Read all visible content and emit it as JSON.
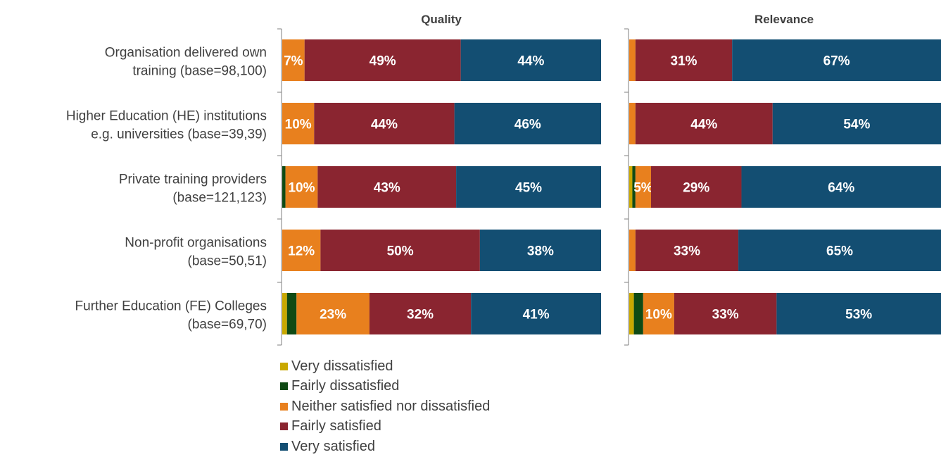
{
  "chart_data": {
    "type": "bar",
    "orientation": "horizontal",
    "stacked": "100%",
    "categories": [
      [
        "Organisation delivered own",
        "training (base=98,100)"
      ],
      [
        "Higher Education (HE) institutions",
        "e.g. universities (base=39,39)"
      ],
      [
        "Private training providers",
        "(base=121,123)"
      ],
      [
        "Non-profit organisations",
        "(base=50,51)"
      ],
      [
        "Further Education (FE) Colleges",
        "(base=69,70)"
      ]
    ],
    "series": [
      {
        "name": "Very dissatisfied",
        "color": "#C9A800"
      },
      {
        "name": "Fairly dissatisfied",
        "color": "#0F4A14"
      },
      {
        "name": "Neither satisfied nor dissatisfied",
        "color": "#E8801E"
      },
      {
        "name": "Fairly satisfied",
        "color": "#8A2530"
      },
      {
        "name": "Very satisfied",
        "color": "#134E72"
      }
    ],
    "panels": [
      {
        "title": "Quality",
        "values": [
          [
            0,
            0,
            7,
            49,
            44
          ],
          [
            0,
            0,
            10,
            44,
            46
          ],
          [
            0,
            1,
            10,
            43,
            45
          ],
          [
            0,
            0,
            12,
            50,
            38
          ],
          [
            1.5,
            3,
            23,
            32,
            41
          ]
        ],
        "labels": [
          [
            "",
            "",
            "7%",
            "49%",
            "44%"
          ],
          [
            "",
            "",
            "10%",
            "44%",
            "46%"
          ],
          [
            "",
            "",
            "10%",
            "43%",
            "45%"
          ],
          [
            "",
            "",
            "12%",
            "50%",
            "38%"
          ],
          [
            "",
            "",
            "23%",
            "32%",
            "41%"
          ]
        ]
      },
      {
        "title": "Relevance",
        "values": [
          [
            0,
            0,
            2,
            31,
            67
          ],
          [
            0,
            0,
            2,
            44,
            54
          ],
          [
            1,
            1,
            5,
            29,
            64
          ],
          [
            0,
            0,
            2,
            33,
            65
          ],
          [
            1.5,
            3,
            10,
            33,
            53
          ]
        ],
        "labels": [
          [
            "",
            "",
            "",
            "31%",
            "67%"
          ],
          [
            "",
            "",
            "",
            "44%",
            "54%"
          ],
          [
            "",
            "",
            "5%",
            "29%",
            "64%"
          ],
          [
            "",
            "",
            "",
            "33%",
            "65%"
          ],
          [
            "",
            "",
            "10%",
            "33%",
            "53%"
          ]
        ]
      }
    ],
    "xlim": [
      0,
      100
    ],
    "grid": false,
    "legend_position": "bottom-left"
  }
}
